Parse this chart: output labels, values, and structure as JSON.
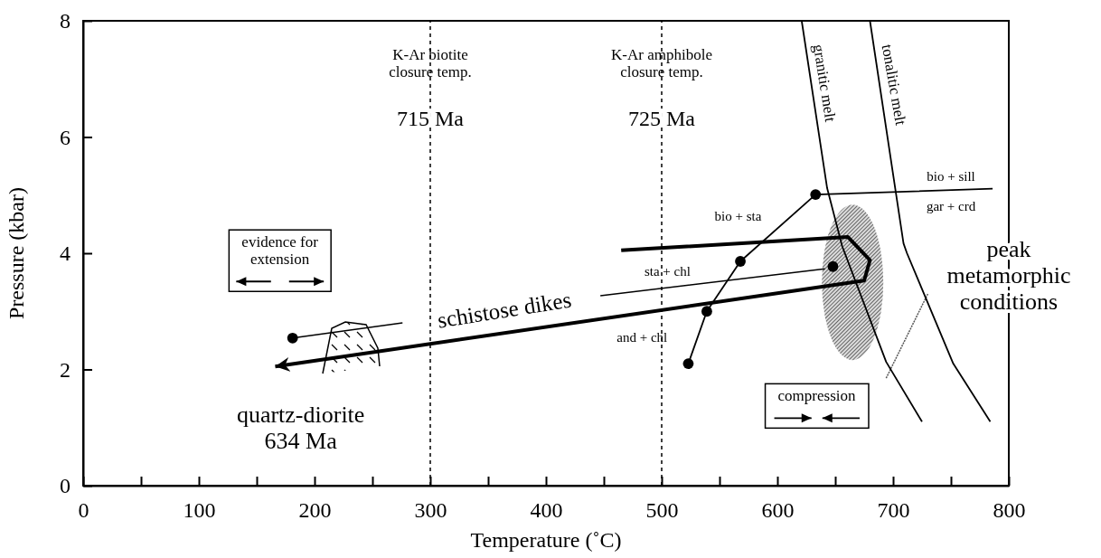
{
  "chart_data": {
    "type": "line",
    "xlabel": "Temperature (˚C)",
    "ylabel": "Pressure (kbar)",
    "xlim": [
      0,
      800
    ],
    "ylim": [
      0,
      8
    ],
    "xticks": [
      0,
      {
        "value": 50,
        "label": null
      },
      100,
      {
        "value": 150,
        "label": null
      },
      200,
      {
        "value": 250,
        "label": null
      },
      300,
      {
        "value": 350,
        "label": null
      },
      400,
      {
        "value": 450,
        "label": null
      },
      500,
      {
        "value": 550,
        "label": null
      },
      600,
      {
        "value": 650,
        "label": null
      },
      700,
      {
        "value": 750,
        "label": null
      },
      800
    ],
    "yticks": [
      0,
      2,
      4,
      6,
      8
    ],
    "series": [
      {
        "color": "#000000",
        "x": [
          465,
          661,
          680,
          675,
          166
        ],
        "values": [
          4.05,
          4.28,
          3.88,
          3.53,
          2.05
        ]
      },
      {
        "color": "#000000",
        "x": [
          523,
          539,
          568,
          633,
          786
        ],
        "values": [
          2.1,
          3.0,
          3.86,
          5.01,
          5.11
        ]
      },
      {
        "color": "#000000",
        "x": [
          181,
          276,
          362,
          447,
          641
        ],
        "values": [
          2.54,
          2.8,
          null,
          3.27,
          3.73
        ]
      },
      {
        "color": "#000000",
        "x": [
          621,
          643,
          656,
          694,
          725
        ],
        "values": [
          8,
          5.12,
          4.12,
          2.13,
          1.1
        ]
      },
      {
        "color": "#000000",
        "x": [
          680,
          709,
          712,
          752,
          784
        ],
        "values": [
          8,
          4.17,
          4.0,
          2.1,
          1.1
        ]
      },
      {
        "type": "scatter",
        "marker": "circle",
        "color": "#000000",
        "x": [
          181,
          523,
          539,
          568,
          633,
          648
        ],
        "values": [
          2.54,
          2.1,
          3.0,
          3.86,
          5.01,
          3.77
        ]
      }
    ],
    "ref_lines": [
      {
        "axis": "x",
        "value": 300,
        "label": "715 Ma",
        "line_style": "dashed"
      },
      {
        "axis": "x",
        "value": 500,
        "label": "725 Ma",
        "line_style": "dashed"
      }
    ],
    "annotations": [
      "K-Ar biotite\nclosure temp.",
      "K-Ar amphibole\nclosure temp.",
      "granitic melt",
      "tonalitic melt",
      "bio + sill",
      "gar + crd",
      "bio + sta",
      "sta + chl",
      "and + chl",
      "schistose dikes",
      "quartz-diorite\n634 Ma",
      "peak\nmetamorphic\nconditions",
      "evidence for\nextension",
      "compression"
    ]
  }
}
